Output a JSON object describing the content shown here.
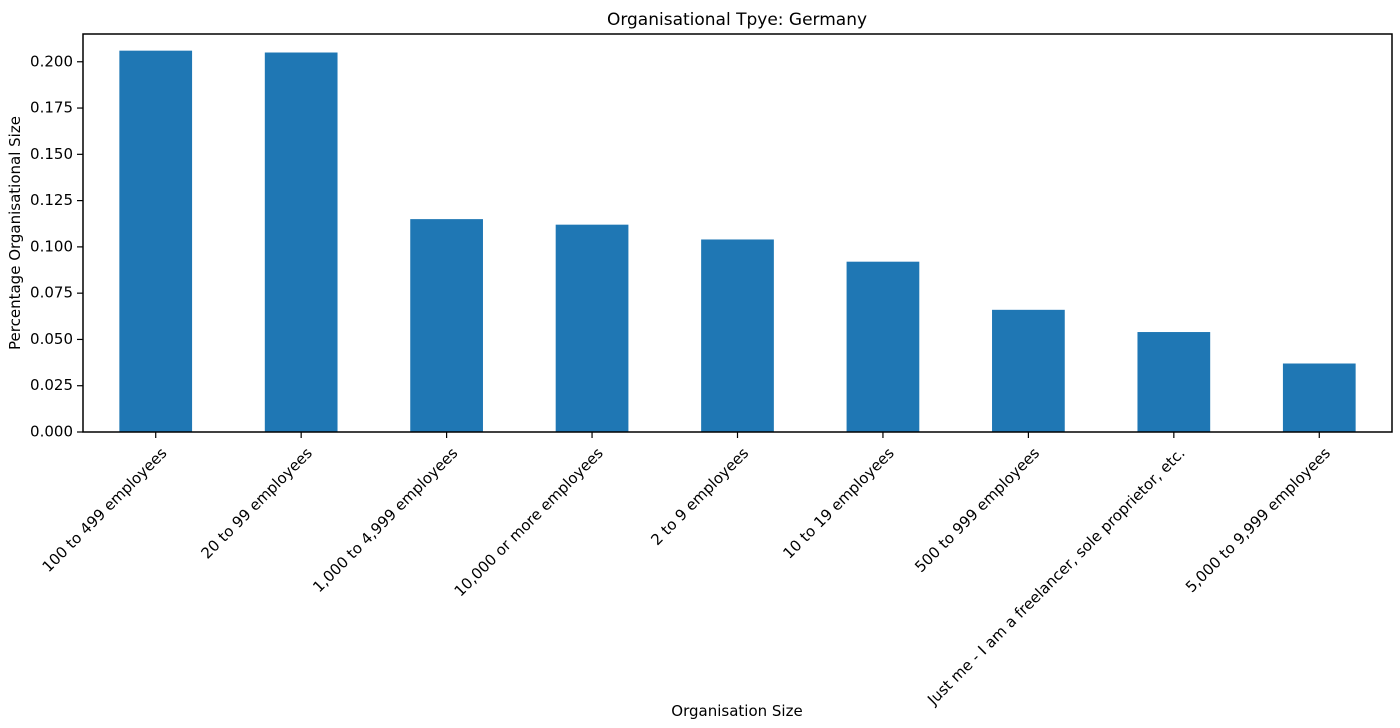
{
  "chart_data": {
    "type": "bar",
    "title": "Organisational Tpye: Germany",
    "xlabel": "Organisation Size",
    "ylabel": "Percentage Organisational Size",
    "categories": [
      "100 to 499 employees",
      "20 to 99 employees",
      "1,000 to 4,999 employees",
      "10,000 or more employees",
      "2 to 9 employees",
      "10 to 19 employees",
      "500 to 999 employees",
      "Just me - I am a freelancer, sole proprietor, etc.",
      "5,000 to 9,999 employees"
    ],
    "values": [
      0.206,
      0.205,
      0.115,
      0.112,
      0.104,
      0.092,
      0.066,
      0.054,
      0.037
    ],
    "yticks": [
      "0.000",
      "0.025",
      "0.050",
      "0.075",
      "0.100",
      "0.125",
      "0.150",
      "0.175",
      "0.200"
    ],
    "ylim": [
      0,
      0.215
    ],
    "grid": false,
    "colors": {
      "bar": "#1f77b4",
      "axis": "#000000"
    }
  }
}
